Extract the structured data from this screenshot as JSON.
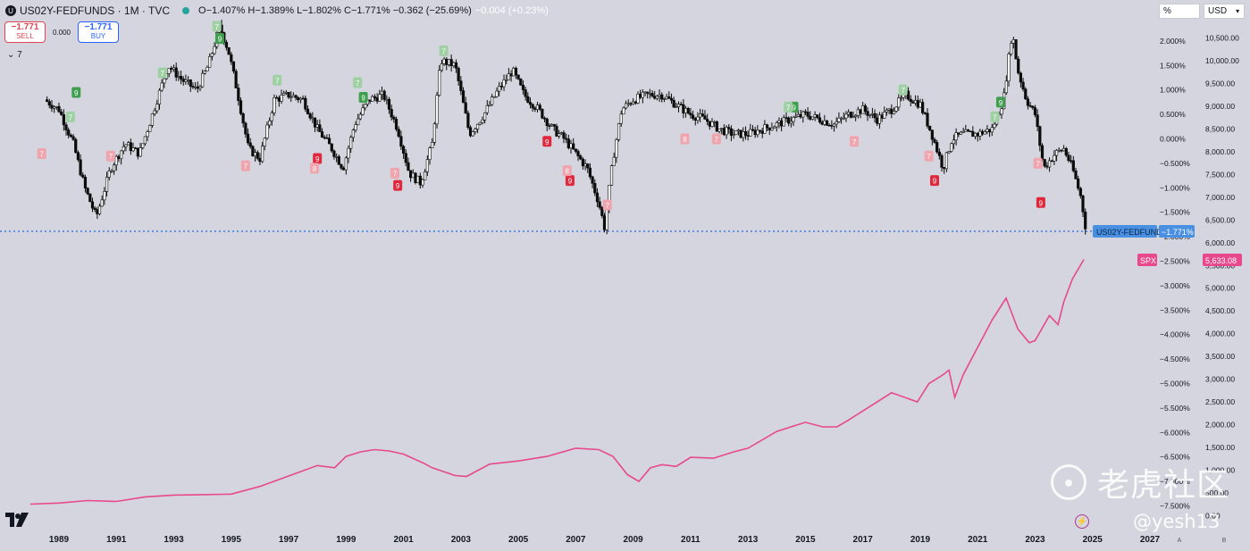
{
  "header": {
    "symbol": "US02Y-FEDFUNDS · 1M · TVC",
    "ohlc": "O−1.407% H−1.389% L−1.802% C−1.771% −0.362 (−25.69%)",
    "extra": "−0.004 (+0.23%)"
  },
  "trade": {
    "sell_value": "−1.771",
    "sell_label": "SELL",
    "spread": "0.000",
    "buy_value": "−1.771",
    "buy_label": "BUY"
  },
  "indicator_label": "7",
  "top_right": {
    "unit_box": "%",
    "currency_box": "USD"
  },
  "watermark": {
    "text": "老虎社区",
    "handle": "@yesh13"
  },
  "colors": {
    "background": "#d4d5de",
    "spx_line": "#e8488c",
    "price_line": "#3d7be0",
    "buy_setup": "#3f9f4f",
    "sell_setup": "#e0283c"
  },
  "chart_data": {
    "type": "line",
    "x_ticks": [
      "1989",
      "1991",
      "1993",
      "1995",
      "1997",
      "1999",
      "2001",
      "2003",
      "2005",
      "2007",
      "2009",
      "2011",
      "2013",
      "2015",
      "2017",
      "2019",
      "2021",
      "2023",
      "2025",
      "2027"
    ],
    "scale_letters": [
      "A",
      "B"
    ],
    "series": [
      {
        "name": "US02Y-FEDFUNDS",
        "style": "candlestick",
        "unit": "%",
        "last_value": "−1.771%",
        "x": [
          1988.5,
          1989.0,
          1989.5,
          1989.9,
          1990.3,
          1990.8,
          1991.3,
          1991.8,
          1992.2,
          1992.8,
          1993.3,
          1993.8,
          1994.2,
          1994.6,
          1994.9,
          1995.2,
          1995.6,
          1996.0,
          1996.5,
          1997.0,
          1997.5,
          1998.0,
          1998.5,
          1998.9,
          1999.3,
          1999.8,
          2000.3,
          2000.8,
          2001.2,
          2001.6,
          2002.0,
          2002.3,
          2002.8,
          2003.3,
          2003.8,
          2004.3,
          2004.8,
          2005.2,
          2005.7,
          2006.2,
          2006.6,
          2007.0,
          2007.4,
          2007.8,
          2008.0,
          2008.3,
          2008.6,
          2009.0,
          2009.5,
          2010.0,
          2010.5,
          2011.0,
          2011.5,
          2012.0,
          2012.5,
          2013.0,
          2013.5,
          2014.0,
          2014.5,
          2015.0,
          2015.5,
          2016.0,
          2016.5,
          2017.0,
          2017.5,
          2018.0,
          2018.5,
          2019.0,
          2019.4,
          2019.8,
          2020.1,
          2020.5,
          2021.0,
          2021.5,
          2021.9,
          2022.2,
          2022.4,
          2022.7,
          2023.0,
          2023.3,
          2023.7,
          2024.0,
          2024.3,
          2024.6,
          2024.75
        ],
        "values": [
          0.8,
          0.6,
          -0.1,
          -1.0,
          -1.6,
          -0.6,
          -0.1,
          -0.3,
          0.4,
          1.5,
          1.2,
          1.0,
          1.5,
          2.3,
          1.8,
          1.0,
          -0.2,
          -0.4,
          0.8,
          0.9,
          0.8,
          0.2,
          -0.2,
          -0.6,
          0.3,
          0.8,
          0.9,
          0.2,
          -0.7,
          -0.9,
          -0.1,
          1.6,
          1.5,
          0.1,
          0.5,
          1.0,
          1.4,
          0.9,
          0.6,
          0.2,
          0.0,
          -0.3,
          -0.6,
          -1.3,
          -1.8,
          -0.4,
          0.6,
          0.8,
          0.9,
          0.9,
          0.7,
          0.5,
          0.4,
          0.2,
          0.1,
          0.1,
          0.2,
          0.3,
          0.4,
          0.5,
          0.4,
          0.3,
          0.5,
          0.6,
          0.4,
          0.6,
          0.9,
          0.7,
          0.1,
          -0.6,
          0.0,
          0.1,
          0.1,
          0.2,
          0.8,
          2.2,
          1.4,
          0.8,
          0.5,
          -0.6,
          -0.3,
          -0.2,
          -0.6,
          -1.2,
          -1.771
        ],
        "y_ticks": [
          "2.000%",
          "1.500%",
          "1.000%",
          "0.500%",
          "0.000%",
          "−0.500%",
          "−1.000%",
          "−1.500%",
          "−2.000%",
          "−2.500%",
          "−3.000%",
          "−3.500%",
          "−4.000%",
          "−4.500%",
          "−5.000%",
          "−5.500%",
          "−6.000%",
          "−6.500%",
          "−7.000%",
          "−7.500%"
        ],
        "ylim": [
          -7.6,
          2.4
        ]
      },
      {
        "name": "SPX",
        "style": "line",
        "last_value": "5,633.08",
        "x": [
          1988.0,
          1989.0,
          1990.0,
          1991.0,
          1992.0,
          1993.0,
          1994.0,
          1995.0,
          1996.0,
          1997.0,
          1998.0,
          1998.6,
          1999.0,
          1999.5,
          2000.0,
          2000.5,
          2001.0,
          2001.7,
          2002.0,
          2002.8,
          2003.2,
          2004.0,
          2005.0,
          2006.0,
          2007.0,
          2007.8,
          2008.3,
          2008.8,
          2009.2,
          2009.6,
          2010.0,
          2010.5,
          2011.0,
          2011.8,
          2012.5,
          2013.0,
          2014.0,
          2015.0,
          2015.6,
          2016.1,
          2016.5,
          2017.0,
          2018.0,
          2018.9,
          2019.3,
          2019.8,
          2020.0,
          2020.2,
          2020.5,
          2021.0,
          2021.5,
          2021.99,
          2022.4,
          2022.8,
          2023.0,
          2023.5,
          2023.8,
          2024.0,
          2024.3,
          2024.7
        ],
        "values": [
          250,
          275,
          330,
          310,
          410,
          450,
          460,
          470,
          640,
          870,
          1100,
          1050,
          1300,
          1400,
          1450,
          1420,
          1350,
          1150,
          1050,
          880,
          860,
          1130,
          1200,
          1300,
          1480,
          1450,
          1300,
          900,
          750,
          1050,
          1120,
          1080,
          1280,
          1260,
          1400,
          1480,
          1850,
          2050,
          1950,
          1950,
          2100,
          2300,
          2700,
          2500,
          2900,
          3100,
          3200,
          2600,
          3100,
          3700,
          4300,
          4780,
          4100,
          3800,
          3850,
          4400,
          4200,
          4700,
          5200,
          5633
        ]
      }
    ],
    "spx_y_ticks": [
      "10,500.00",
      "10,000.00",
      "9,500.00",
      "9,000.00",
      "8,500.00",
      "8,000.00",
      "7,500.00",
      "7,000.00",
      "6,500.00",
      "6,000.00",
      "5,500.00",
      "5,000.00",
      "4,500.00",
      "4,000.00",
      "3,500.00",
      "3,000.00",
      "2,500.00",
      "2,000.00",
      "1,500.00",
      "1,000.00",
      "500.00",
      "0.00"
    ],
    "spx_ylim": [
      -250,
      10750
    ],
    "annotations": [
      {
        "text": "9",
        "x": 1989.6,
        "y": 0.95,
        "kind": "buy"
      },
      {
        "text": "7",
        "x": 1989.4,
        "y": 0.45,
        "kind": "buy-light"
      },
      {
        "text": "9",
        "x": 1994.6,
        "y": 2.05,
        "kind": "buy"
      },
      {
        "text": "7",
        "x": 1994.5,
        "y": 2.3,
        "kind": "buy-light"
      },
      {
        "text": "7",
        "x": 1992.6,
        "y": 1.35,
        "kind": "buy-light"
      },
      {
        "text": "7",
        "x": 1996.6,
        "y": 1.2,
        "kind": "buy-light"
      },
      {
        "text": "9",
        "x": 1999.6,
        "y": 0.85,
        "kind": "buy"
      },
      {
        "text": "7",
        "x": 1999.4,
        "y": 1.15,
        "kind": "buy-light"
      },
      {
        "text": "7",
        "x": 2002.4,
        "y": 1.8,
        "kind": "buy-light"
      },
      {
        "text": "9",
        "x": 2014.6,
        "y": 0.65,
        "kind": "buy"
      },
      {
        "text": "7",
        "x": 2014.4,
        "y": 0.65,
        "kind": "buy-light"
      },
      {
        "text": "7",
        "x": 2018.4,
        "y": 1.0,
        "kind": "buy-light"
      },
      {
        "text": "9",
        "x": 2021.8,
        "y": 0.75,
        "kind": "buy"
      },
      {
        "text": "7",
        "x": 2021.6,
        "y": 0.45,
        "kind": "buy-light"
      },
      {
        "text": "7",
        "x": 1988.4,
        "y": -0.3,
        "kind": "sell-light"
      },
      {
        "text": "7",
        "x": 1990.8,
        "y": -0.35,
        "kind": "sell-light"
      },
      {
        "text": "7",
        "x": 1995.5,
        "y": -0.55,
        "kind": "sell-light"
      },
      {
        "text": "9",
        "x": 1998.0,
        "y": -0.4,
        "kind": "sell"
      },
      {
        "text": "8",
        "x": 1997.9,
        "y": -0.6,
        "kind": "sell-light"
      },
      {
        "text": "9",
        "x": 2000.8,
        "y": -0.95,
        "kind": "sell"
      },
      {
        "text": "7",
        "x": 2000.7,
        "y": -0.7,
        "kind": "sell-light"
      },
      {
        "text": "9",
        "x": 2006.0,
        "y": -0.05,
        "kind": "sell"
      },
      {
        "text": "9",
        "x": 2006.8,
        "y": -0.85,
        "kind": "sell"
      },
      {
        "text": "8",
        "x": 2006.7,
        "y": -0.65,
        "kind": "sell-light"
      },
      {
        "text": "7",
        "x": 2008.1,
        "y": -1.35,
        "kind": "sell-light"
      },
      {
        "text": "8",
        "x": 2010.8,
        "y": 0.0,
        "kind": "sell-light"
      },
      {
        "text": "7",
        "x": 2011.9,
        "y": 0.0,
        "kind": "sell-light"
      },
      {
        "text": "7",
        "x": 2016.7,
        "y": -0.05,
        "kind": "sell-light"
      },
      {
        "text": "9",
        "x": 2019.5,
        "y": -0.85,
        "kind": "sell"
      },
      {
        "text": "7",
        "x": 2019.3,
        "y": -0.35,
        "kind": "sell-light"
      },
      {
        "text": "9",
        "x": 2023.2,
        "y": -1.3,
        "kind": "sell"
      },
      {
        "text": "7",
        "x": 2023.1,
        "y": -0.5,
        "kind": "sell-light"
      }
    ],
    "legend": "right axis labels",
    "grid": false
  }
}
